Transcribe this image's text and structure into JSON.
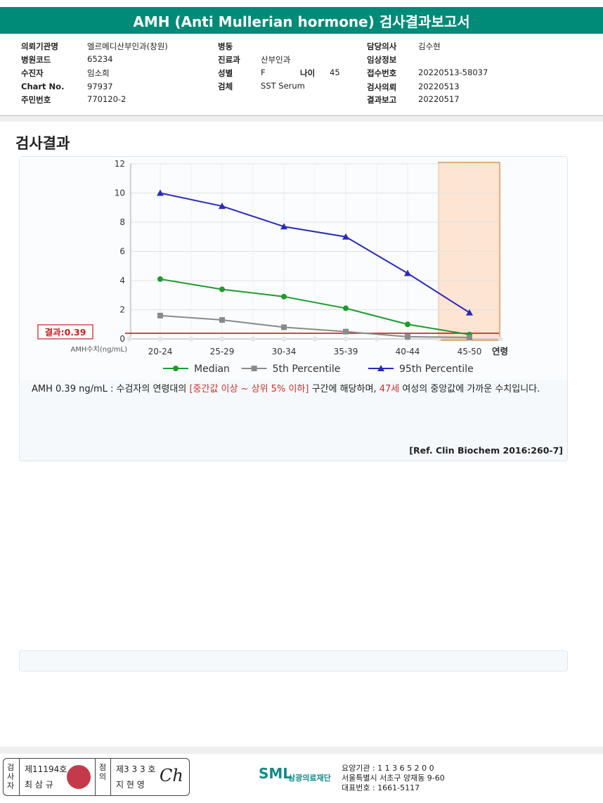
{
  "report": {
    "title": "AMH (Anti Mullerian hormone) 검사결과보고서"
  },
  "patient_info": {
    "institution": {
      "label": "의뢰기관명",
      "value": "엘르메디산부인과(창원)"
    },
    "hospital_code": {
      "label": "병원코드",
      "value": "65234"
    },
    "patient": {
      "label": "수진자",
      "value": "임소희"
    },
    "chart_no": {
      "label": "Chart No.",
      "value": "97937"
    },
    "resident_no": {
      "label": "주민번호",
      "value": "770120-2"
    },
    "ward": {
      "label": "병동",
      "value": ""
    },
    "department": {
      "label": "진료과",
      "value": "산부인과"
    },
    "sex": {
      "label": "성별",
      "value": "F"
    },
    "age": {
      "label": "나이",
      "value": "45"
    },
    "specimen": {
      "label": "검체",
      "value": "SST Serum"
    },
    "doctor": {
      "label": "담당의사",
      "value": "김수현"
    },
    "clinical_info": {
      "label": "임상정보",
      "value": ""
    },
    "receipt_no": {
      "label": "접수번호",
      "value": "20220513-58037"
    },
    "request_date": {
      "label": "검사의뢰",
      "value": "20220513"
    },
    "report_date": {
      "label": "결과보고",
      "value": "20220517"
    }
  },
  "section_title": "검사결과",
  "chart_data": {
    "type": "line",
    "categories": [
      "20-24",
      "25-29",
      "30-34",
      "35-39",
      "40-44",
      "45-50"
    ],
    "x_axis_suffix": "연령",
    "ylabel": "AMH수치(ng/mL)",
    "ylim": [
      0,
      12
    ],
    "yticks": [
      "0",
      "2",
      "4",
      "6",
      "8",
      "10",
      "12"
    ],
    "grid": true,
    "highlight_category": "45-50",
    "result_line": {
      "label": "결과:0.39",
      "value": 0.39
    },
    "legend_position": "bottom",
    "series": [
      {
        "name": "Median",
        "color": "#1f9a2e",
        "marker": "circle",
        "values": [
          4.1,
          3.4,
          2.9,
          2.1,
          1.0,
          0.3
        ]
      },
      {
        "name": "5th Percentile",
        "color": "#8a8a8a",
        "marker": "square",
        "values": [
          1.6,
          1.3,
          0.8,
          0.5,
          0.15,
          0.1
        ]
      },
      {
        "name": "95th Percentile",
        "color": "#2a2ab8",
        "marker": "triangle",
        "values": [
          10.0,
          9.1,
          7.7,
          7.0,
          4.5,
          1.8
        ]
      }
    ]
  },
  "interpretation": {
    "part1": "AMH  0.39 ng/mL : 수검자의 연령대의 ",
    "range": "[중간값 이상 ~ 상위 5% 이하]",
    "part2": " 구간에 해당하며, ",
    "age": "47세",
    "part3": " 여성의 중앙값에 가까운 수치입니다."
  },
  "reference": "[Ref. Clin Biochem 2016:260-7]",
  "footer": {
    "inspector_label": "검사자",
    "inspector_no": "제11194호",
    "inspector_name": "최 삼 규",
    "reviewer_label": "점의",
    "reviewer_no": "제3 3 3 호",
    "reviewer_name": "지 현 영",
    "signature": "Ch",
    "logo_text": "SML",
    "foundation": "삼광의료재단",
    "agency_code": "요양기관 : 1 1 3 6 5 2 0 0",
    "address": "서울특별시 서초구 양재동 9-60",
    "phone": "대표번호 : 1661-5117"
  }
}
